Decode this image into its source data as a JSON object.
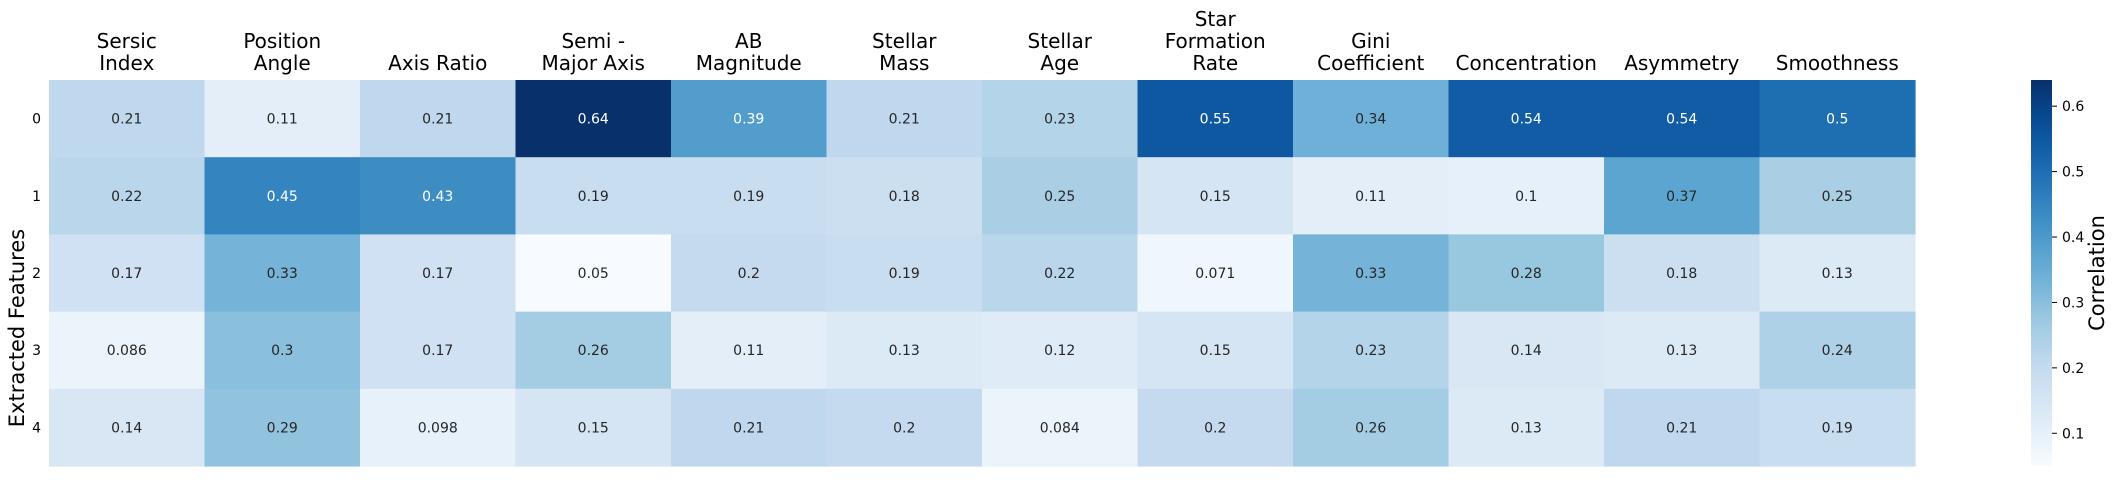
{
  "chart_data": {
    "type": "heatmap",
    "x_categories": [
      "Sersic\nIndex",
      "Position\nAngle",
      "Axis Ratio",
      "Semi -\nMajor Axis",
      "AB\nMagnitude",
      "Stellar\nMass",
      "Stellar\nAge",
      "Star\nFormation\nRate",
      "Gini\nCoefficient",
      "Concentration",
      "Asymmetry",
      "Smoothness"
    ],
    "y_categories": [
      "0",
      "1",
      "2",
      "3",
      "4"
    ],
    "values": [
      [
        0.21,
        0.11,
        0.21,
        0.64,
        0.39,
        0.21,
        0.23,
        0.55,
        0.34,
        0.54,
        0.54,
        0.5
      ],
      [
        0.22,
        0.45,
        0.43,
        0.19,
        0.19,
        0.18,
        0.25,
        0.15,
        0.11,
        0.1,
        0.37,
        0.25
      ],
      [
        0.17,
        0.33,
        0.17,
        0.05,
        0.2,
        0.19,
        0.22,
        0.071,
        0.33,
        0.28,
        0.18,
        0.13
      ],
      [
        0.086,
        0.3,
        0.17,
        0.26,
        0.11,
        0.13,
        0.12,
        0.15,
        0.23,
        0.14,
        0.13,
        0.24
      ],
      [
        0.14,
        0.29,
        0.098,
        0.15,
        0.21,
        0.2,
        0.084,
        0.2,
        0.26,
        0.13,
        0.21,
        0.19
      ]
    ],
    "ylabel": "Extracted Features",
    "colorbar_label": "Correlation",
    "colorbar_ticks": [
      "0.1",
      "0.2",
      "0.3",
      "0.4",
      "0.5",
      "0.6"
    ],
    "colorbar_tick_values": [
      0.1,
      0.2,
      0.3,
      0.4,
      0.5,
      0.6
    ],
    "vmin": 0.05,
    "vmax": 0.64,
    "colormap": "Blues",
    "colors": {
      "low": "#f7fbff",
      "high": "#08306b"
    },
    "annotated": true
  }
}
